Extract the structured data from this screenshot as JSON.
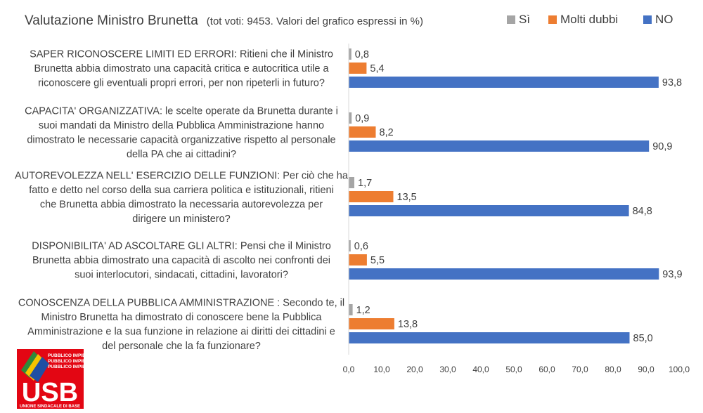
{
  "chart_data": {
    "type": "bar",
    "orientation": "horizontal",
    "title": "Valutazione Ministro Brunetta",
    "subtitle": "(tot voti: 9453. Valori del grafico espressi in %)",
    "xlim": [
      0,
      100
    ],
    "x_ticks": [
      "0,0",
      "10,0",
      "20,0",
      "30,0",
      "40,0",
      "50,0",
      "60,0",
      "70,0",
      "80,0",
      "90,0",
      "100,0"
    ],
    "legend_position": "top-right",
    "categories": [
      [
        "SAPER RICONOSCERE LIMITI ED ERRORI: Ritieni che il Ministro",
        "Brunetta abbia dimostrato una capacità critica e autocritica utile a",
        "riconoscere gli eventuali propri errori, per non ripeterli in futuro?"
      ],
      [
        "CAPACITA' ORGANIZZATIVA: le scelte operate da Brunetta durante i",
        "suoi mandati da Ministro della Pubblica Amministrazione hanno",
        "dimostrato le necessarie capacità organizzative rispetto al personale",
        "della PA che ai cittadini?"
      ],
      [
        "AUTOREVOLEZZA NELL' ESERCIZIO DELLE FUNZIONI: Per ciò che ha",
        "fatto e detto nel corso della sua carriera politica e istituzionali, ritieni",
        "che Brunetta abbia dimostrato la necessaria autorevolezza per",
        "dirigere un ministero?"
      ],
      [
        "DISPONIBILITA' AD ASCOLTARE GLI ALTRI: Pensi che il Ministro",
        "Brunetta abbia dimostrato una capacità di ascolto nei confronti dei",
        "suoi interlocutori, sindacati, cittadini, lavoratori?"
      ],
      [
        "CONOSCENZA DELLA PUBBLICA AMMINISTRAZIONE : Secondo te, il",
        "Ministro Brunetta ha dimostrato di conoscere bene la Pubblica",
        "Amministrazione e la sua funzione in relazione ai diritti dei cittadini e",
        "del personale che la fa funzionare?"
      ]
    ],
    "series": [
      {
        "name": "Sì",
        "color": "#a5a5a5",
        "values": [
          0.8,
          0.9,
          1.7,
          0.6,
          1.2
        ],
        "labels": [
          "0,8",
          "0,9",
          "1,7",
          "0,6",
          "1,2"
        ]
      },
      {
        "name": "Molti dubbi",
        "color": "#ed7d31",
        "values": [
          5.4,
          8.2,
          13.5,
          5.5,
          13.8
        ],
        "labels": [
          "5,4",
          "8,2",
          "13,5",
          "5,5",
          "13,8"
        ]
      },
      {
        "name": "NO",
        "color": "#4472c4",
        "values": [
          93.8,
          90.9,
          84.8,
          93.9,
          85.0
        ],
        "labels": [
          "93,8",
          "90,9",
          "84,8",
          "93,9",
          "85,0"
        ]
      }
    ]
  },
  "logo": {
    "text": "USB",
    "subtext": "UNIONE SINDACALE DI BASE",
    "banner_text": "PUBBLICO IMPIEGO",
    "background_color": "#e30613"
  }
}
